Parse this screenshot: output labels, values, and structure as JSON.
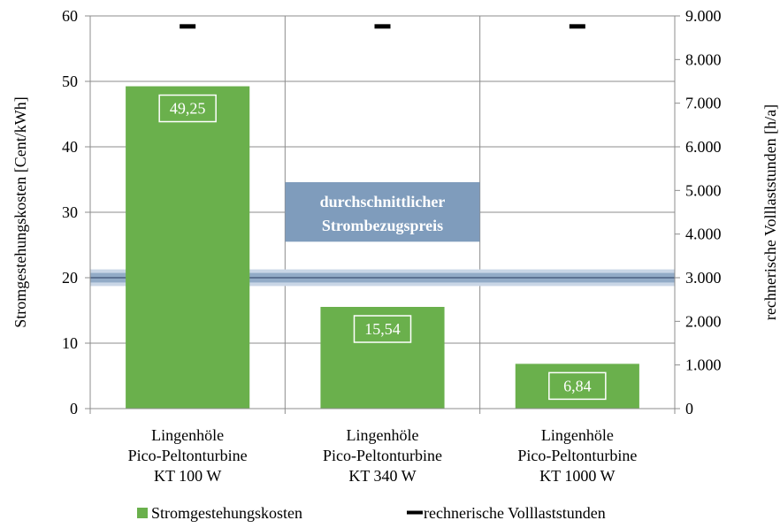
{
  "chart_data": {
    "type": "bar",
    "categories": [
      [
        "Lingenhöle",
        "Pico-Peltonturbine",
        "KT 100 W"
      ],
      [
        "Lingenhöle",
        "Pico-Peltonturbine",
        "KT 340 W"
      ],
      [
        "Lingenhöle",
        "Pico-Peltonturbine",
        "KT 1000 W"
      ]
    ],
    "series": [
      {
        "name": "Stromgestehungskosten",
        "axis": "left",
        "type": "bar",
        "values": [
          49.25,
          15.54,
          6.84
        ],
        "data_labels": [
          "49,25",
          "15,54",
          "6,84"
        ],
        "color": "#6ab04c"
      },
      {
        "name": "rechnerische Volllaststunden",
        "axis": "right",
        "type": "marker",
        "values": [
          8760,
          8760,
          8760
        ],
        "color": "#000000"
      }
    ],
    "ylabel": "Stromgestehungskosten [Cent/kWh]",
    "y2label": "rechnerische Volllaststunden [h/a]",
    "ylim": [
      0,
      60
    ],
    "y2lim": [
      0,
      9000
    ],
    "yticks": [
      0,
      10,
      20,
      30,
      40,
      50,
      60
    ],
    "ytick_labels": [
      "0",
      "10",
      "20",
      "30",
      "40",
      "50",
      "60"
    ],
    "y2ticks": [
      0,
      1000,
      2000,
      3000,
      4000,
      5000,
      6000,
      7000,
      8000,
      9000
    ],
    "y2tick_labels": [
      "0",
      "1.000",
      "2.000",
      "3.000",
      "4.000",
      "5.000",
      "6.000",
      "7.000",
      "8.000",
      "9.000"
    ],
    "reference_band": {
      "label_lines": [
        "durchschnittlicher",
        "Strombezugspreis"
      ],
      "value": 20,
      "range": [
        19,
        21
      ],
      "color": "#7f9cbc"
    },
    "grid": true,
    "legend_position": "bottom"
  }
}
